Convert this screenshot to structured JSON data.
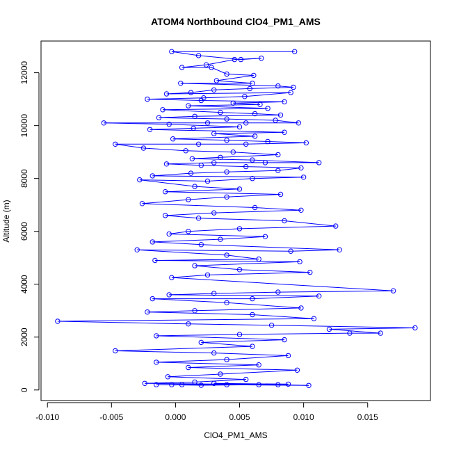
{
  "chart_data": {
    "type": "line",
    "title": "ATOM4 Northbound ClO4_PM1_AMS",
    "xlabel": "ClO4_PM1_AMS",
    "ylabel": "Altitude (m)",
    "xlim": [
      -0.0105,
      0.0199
    ],
    "ylim": [
      -400,
      13200
    ],
    "x_ticks": [
      -0.01,
      -0.005,
      0,
      0.005,
      0.01,
      0.015
    ],
    "x_tick_labels": [
      "-0.010",
      "-0.005",
      "0.000",
      "0.005",
      "0.010",
      "0.015"
    ],
    "y_ticks": [
      0,
      2000,
      4000,
      6000,
      8000,
      10000,
      12000
    ],
    "y_tick_labels": [
      "0",
      "2000",
      "4000",
      "6000",
      "8000",
      "10000",
      "12000"
    ],
    "grid": false,
    "legend": "none",
    "marker": "open-circle",
    "series": [
      {
        "color": "#0000ff",
        "points": [
          [
            0.0093,
            12800
          ],
          [
            -0.0003,
            12800
          ],
          [
            0.0018,
            12650
          ],
          [
            0.0051,
            12500
          ],
          [
            0.0067,
            12550
          ],
          [
            0.0046,
            12500
          ],
          [
            0.0024,
            12300
          ],
          [
            0.0005,
            12200
          ],
          [
            0.0028,
            12200
          ],
          [
            0.004,
            11950
          ],
          [
            0.0061,
            11900
          ],
          [
            0.0032,
            11700
          ],
          [
            0.006,
            11600
          ],
          [
            0.0004,
            11600
          ],
          [
            0.008,
            11500
          ],
          [
            0.0092,
            11450
          ],
          [
            0.0058,
            11400
          ],
          [
            0.003,
            11350
          ],
          [
            0.0012,
            11250
          ],
          [
            -0.0007,
            11200
          ],
          [
            0.009,
            11250
          ],
          [
            0.0054,
            11100
          ],
          [
            0.0022,
            11050
          ],
          [
            -0.0022,
            11000
          ],
          [
            0.002,
            10950
          ],
          [
            0.0085,
            10900
          ],
          [
            0.0045,
            10850
          ],
          [
            0.0066,
            10800
          ],
          [
            0.001,
            10750
          ],
          [
            0.0072,
            10650
          ],
          [
            -0.001,
            10600
          ],
          [
            0.0035,
            10500
          ],
          [
            0.0062,
            10450
          ],
          [
            0.0082,
            10400
          ],
          [
            0.0015,
            10350
          ],
          [
            -0.0013,
            10300
          ],
          [
            0.004,
            10250
          ],
          [
            0.0078,
            10200
          ],
          [
            0.0096,
            10100
          ],
          [
            0.0055,
            10100
          ],
          [
            0.0025,
            10100
          ],
          [
            -0.0056,
            10100
          ],
          [
            -0.0005,
            10050
          ],
          [
            0.005,
            9950
          ],
          [
            0.0014,
            9900
          ],
          [
            -0.002,
            9850
          ],
          [
            0.0085,
            9750
          ],
          [
            0.003,
            9700
          ],
          [
            0.0062,
            9600
          ],
          [
            -0.0002,
            9500
          ],
          [
            0.004,
            9450
          ],
          [
            0.0072,
            9400
          ],
          [
            0.0102,
            9350
          ],
          [
            0.0055,
            9300
          ],
          [
            0.0018,
            9300
          ],
          [
            -0.0047,
            9300
          ],
          [
            -0.0025,
            9150
          ],
          [
            0.0008,
            9050
          ],
          [
            0.0045,
            9000
          ],
          [
            0.008,
            8900
          ],
          [
            0.0035,
            8800
          ],
          [
            0.0013,
            8750
          ],
          [
            0.006,
            8700
          ],
          [
            0.0112,
            8600
          ],
          [
            0.007,
            8600
          ],
          [
            0.003,
            8600
          ],
          [
            -0.0007,
            8550
          ],
          [
            0.002,
            8500
          ],
          [
            0.0055,
            8450
          ],
          [
            0.0098,
            8400
          ],
          [
            0.008,
            8300
          ],
          [
            0.004,
            8250
          ],
          [
            0.0012,
            8200
          ],
          [
            -0.0018,
            8100
          ],
          [
            0.01,
            8050
          ],
          [
            0.006,
            8000
          ],
          [
            0.0025,
            7900
          ],
          [
            -0.0028,
            7950
          ],
          [
            0.0015,
            7700
          ],
          [
            0.005,
            7600
          ],
          [
            -0.0008,
            7500
          ],
          [
            0.0082,
            7400
          ],
          [
            0.004,
            7300
          ],
          [
            0.001,
            7200
          ],
          [
            -0.0026,
            7050
          ],
          [
            0.0062,
            6900
          ],
          [
            0.0098,
            6800
          ],
          [
            0.003,
            6700
          ],
          [
            -0.0008,
            6600
          ],
          [
            0.0018,
            6500
          ],
          [
            0.0085,
            6400
          ],
          [
            0.0125,
            6200
          ],
          [
            0.005,
            6100
          ],
          [
            0.001,
            6000
          ],
          [
            -0.0005,
            5900
          ],
          [
            0.007,
            5800
          ],
          [
            0.0035,
            5700
          ],
          [
            -0.0018,
            5600
          ],
          [
            0.002,
            5500
          ],
          [
            0.0128,
            5300
          ],
          [
            0.009,
            5250
          ],
          [
            -0.003,
            5300
          ],
          [
            0.004,
            5100
          ],
          [
            0.0065,
            4950
          ],
          [
            -0.0016,
            4900
          ],
          [
            0.0097,
            4850
          ],
          [
            0.0015,
            4700
          ],
          [
            0.005,
            4550
          ],
          [
            0.0105,
            4450
          ],
          [
            0.0025,
            4350
          ],
          [
            -0.0003,
            4250
          ],
          [
            0.017,
            3750
          ],
          [
            0.008,
            3700
          ],
          [
            0.003,
            3650
          ],
          [
            -0.0005,
            3600
          ],
          [
            0.0112,
            3550
          ],
          [
            0.006,
            3450
          ],
          [
            -0.0018,
            3450
          ],
          [
            0.004,
            3300
          ],
          [
            0.0098,
            3100
          ],
          [
            0.0015,
            3000
          ],
          [
            -0.0022,
            2950
          ],
          [
            0.006,
            2850
          ],
          [
            0.0108,
            2700
          ],
          [
            -0.0092,
            2600
          ],
          [
            0.001,
            2500
          ],
          [
            0.0075,
            2450
          ],
          [
            0.0187,
            2350
          ],
          [
            0.012,
            2300
          ],
          [
            0.016,
            2150
          ],
          [
            0.0136,
            2150
          ],
          [
            0.005,
            2100
          ],
          [
            -0.0015,
            2050
          ],
          [
            0.0085,
            1900
          ],
          [
            0.002,
            1800
          ],
          [
            0.006,
            1650
          ],
          [
            -0.0047,
            1480
          ],
          [
            0.003,
            1400
          ],
          [
            0.0088,
            1300
          ],
          [
            0.004,
            1150
          ],
          [
            -0.0015,
            1050
          ],
          [
            0.0065,
            950
          ],
          [
            0.001,
            850
          ],
          [
            0.0095,
            750
          ],
          [
            0.0035,
            600
          ],
          [
            -0.0006,
            500
          ],
          [
            0.0055,
            400
          ],
          [
            0.0015,
            300
          ],
          [
            -0.0024,
            250
          ],
          [
            0.008,
            200
          ],
          [
            0.0104,
            170
          ],
          [
            0.004,
            200
          ],
          [
            0.0005,
            200
          ],
          [
            -0.0015,
            200
          ],
          [
            0.002,
            180
          ],
          [
            0.0065,
            200
          ],
          [
            0.003,
            250
          ],
          [
            0.0088,
            220
          ],
          [
            -0.0003,
            200
          ]
        ]
      }
    ]
  }
}
